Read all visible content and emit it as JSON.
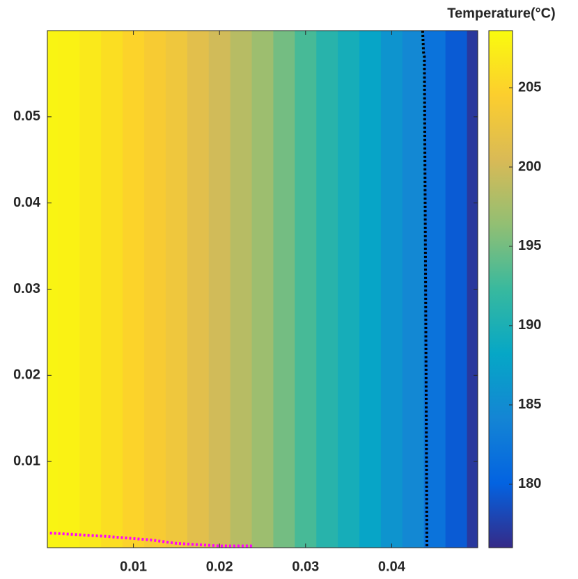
{
  "chart_data": {
    "type": "contour",
    "colorbar_label": "Temperature(°C)",
    "x": [
      0,
      0.0025,
      0.005,
      0.0075,
      0.01,
      0.0125,
      0.015,
      0.0175,
      0.02,
      0.0225,
      0.025,
      0.0275,
      0.03,
      0.0325,
      0.035,
      0.0375,
      0.04,
      0.0425,
      0.045,
      0.0475,
      0.05
    ],
    "values": [
      208,
      207.8,
      207,
      206,
      205,
      204,
      203,
      201.5,
      200,
      198.5,
      197,
      195,
      193,
      191,
      189.5,
      188,
      186,
      184.5,
      182,
      179.5,
      177
    ],
    "xlim": [
      0,
      0.05
    ],
    "xticks": [
      0.01,
      0.02,
      0.03,
      0.04
    ],
    "ylim": [
      0,
      0.06
    ],
    "yticks": [
      0.01,
      0.02,
      0.03,
      0.04,
      0.05
    ],
    "clim": [
      176,
      208.6
    ],
    "cticks": [
      180,
      185,
      190,
      195,
      200,
      205
    ],
    "colormap": [
      "#352a87",
      "#0363e1",
      "#1485d4",
      "#06a7c6",
      "#38b99e",
      "#92bf73",
      "#d9ba56",
      "#fcce2e",
      "#f9fb0e"
    ],
    "lines": [
      {
        "color": "#000000",
        "x": [
          0.0436,
          0.0437,
          0.0438,
          0.044,
          0.0441
        ],
        "y": [
          0.06,
          0.0575,
          0.057,
          0.02,
          0.0
        ]
      },
      {
        "color": "#ff00ff",
        "x": [
          0.0003,
          0.007,
          0.012,
          0.015,
          0.02,
          0.024
        ],
        "y": [
          0.0017,
          0.0013,
          0.0009,
          0.0005,
          0.0002,
          0.0002
        ]
      }
    ]
  }
}
